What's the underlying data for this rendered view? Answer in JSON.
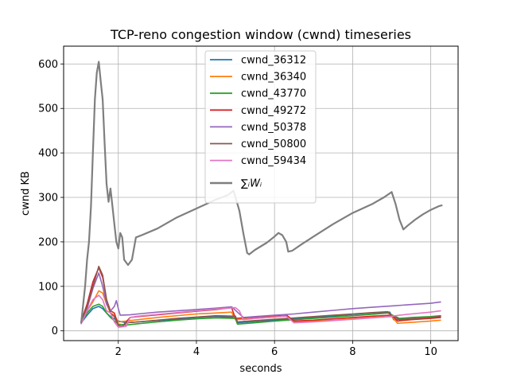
{
  "chart_data": {
    "type": "line",
    "title": "TCP-reno congestion window (cwnd) timeseries",
    "xlabel": "seconds",
    "ylabel": "cwnd KB",
    "xlim": [
      0.6,
      10.7
    ],
    "ylim": [
      -22,
      640
    ],
    "xticks": [
      2,
      4,
      6,
      8,
      10
    ],
    "yticks": [
      0,
      100,
      200,
      300,
      400,
      500,
      600
    ],
    "grid": true,
    "legend_position": "top-center",
    "series": [
      {
        "name": "cwnd_36312",
        "color": "#1f77b4",
        "points": [
          [
            1.05,
            18
          ],
          [
            1.2,
            35
          ],
          [
            1.35,
            50
          ],
          [
            1.5,
            55
          ],
          [
            1.6,
            50
          ],
          [
            1.7,
            40
          ],
          [
            1.8,
            32
          ],
          [
            2.0,
            22
          ],
          [
            2.2,
            18
          ],
          [
            2.5,
            20
          ],
          [
            3.0,
            23
          ],
          [
            3.5,
            26
          ],
          [
            4.0,
            30
          ],
          [
            4.5,
            32
          ],
          [
            5.0,
            30
          ],
          [
            5.05,
            18
          ],
          [
            5.5,
            21
          ],
          [
            6.0,
            24
          ],
          [
            6.5,
            27
          ],
          [
            7.0,
            30
          ],
          [
            7.5,
            33
          ],
          [
            8.0,
            37
          ],
          [
            8.5,
            40
          ],
          [
            8.95,
            42
          ],
          [
            9.05,
            25
          ],
          [
            9.5,
            27
          ],
          [
            10.0,
            29
          ],
          [
            10.25,
            30
          ]
        ]
      },
      {
        "name": "cwnd_36340",
        "color": "#ff7f0e",
        "points": [
          [
            1.05,
            20
          ],
          [
            1.2,
            45
          ],
          [
            1.35,
            65
          ],
          [
            1.5,
            90
          ],
          [
            1.6,
            85
          ],
          [
            1.7,
            60
          ],
          [
            1.8,
            40
          ],
          [
            1.9,
            35
          ],
          [
            2.0,
            20
          ],
          [
            2.2,
            22
          ],
          [
            2.5,
            25
          ],
          [
            3.0,
            30
          ],
          [
            3.5,
            34
          ],
          [
            4.0,
            38
          ],
          [
            4.5,
            40
          ],
          [
            4.9,
            42
          ],
          [
            5.0,
            25
          ],
          [
            5.5,
            28
          ],
          [
            6.0,
            31
          ],
          [
            6.3,
            33
          ],
          [
            6.5,
            20
          ],
          [
            7.0,
            22
          ],
          [
            7.5,
            24
          ],
          [
            8.0,
            27
          ],
          [
            8.5,
            30
          ],
          [
            9.0,
            32
          ],
          [
            9.15,
            17
          ],
          [
            9.5,
            19
          ],
          [
            10.0,
            22
          ],
          [
            10.25,
            24
          ]
        ]
      },
      {
        "name": "cwnd_43770",
        "color": "#2ca02c",
        "points": [
          [
            1.05,
            18
          ],
          [
            1.2,
            40
          ],
          [
            1.35,
            55
          ],
          [
            1.5,
            60
          ],
          [
            1.6,
            55
          ],
          [
            1.7,
            40
          ],
          [
            1.8,
            30
          ],
          [
            2.0,
            15
          ],
          [
            2.2,
            13
          ],
          [
            2.5,
            16
          ],
          [
            3.0,
            20
          ],
          [
            3.5,
            24
          ],
          [
            4.0,
            27
          ],
          [
            4.5,
            29
          ],
          [
            5.0,
            28
          ],
          [
            5.05,
            15
          ],
          [
            5.5,
            18
          ],
          [
            6.0,
            22
          ],
          [
            6.5,
            25
          ],
          [
            7.0,
            28
          ],
          [
            7.5,
            31
          ],
          [
            8.0,
            34
          ],
          [
            8.5,
            37
          ],
          [
            8.9,
            40
          ],
          [
            9.0,
            36
          ],
          [
            9.2,
            28
          ],
          [
            9.5,
            30
          ],
          [
            10.0,
            32
          ],
          [
            10.25,
            34
          ]
        ]
      },
      {
        "name": "cwnd_49272",
        "color": "#d62728",
        "points": [
          [
            1.05,
            22
          ],
          [
            1.2,
            60
          ],
          [
            1.35,
            110
          ],
          [
            1.5,
            142
          ],
          [
            1.6,
            120
          ],
          [
            1.7,
            70
          ],
          [
            1.8,
            45
          ],
          [
            1.9,
            40
          ],
          [
            2.0,
            12
          ],
          [
            2.1,
            10
          ],
          [
            2.3,
            30
          ],
          [
            2.5,
            32
          ],
          [
            3.0,
            36
          ],
          [
            3.5,
            40
          ],
          [
            4.0,
            44
          ],
          [
            4.5,
            48
          ],
          [
            4.9,
            52
          ],
          [
            5.0,
            28
          ],
          [
            5.5,
            31
          ],
          [
            6.0,
            34
          ],
          [
            6.3,
            36
          ],
          [
            6.5,
            22
          ],
          [
            7.0,
            24
          ],
          [
            7.5,
            27
          ],
          [
            8.0,
            30
          ],
          [
            8.5,
            33
          ],
          [
            9.0,
            35
          ],
          [
            9.15,
            22
          ],
          [
            9.5,
            25
          ],
          [
            10.0,
            28
          ],
          [
            10.25,
            30
          ]
        ]
      },
      {
        "name": "cwnd_50378",
        "color": "#9467bd",
        "points": [
          [
            1.05,
            20
          ],
          [
            1.2,
            50
          ],
          [
            1.35,
            95
          ],
          [
            1.5,
            130
          ],
          [
            1.6,
            100
          ],
          [
            1.7,
            60
          ],
          [
            1.8,
            45
          ],
          [
            1.9,
            55
          ],
          [
            1.95,
            68
          ],
          [
            2.0,
            50
          ],
          [
            2.05,
            35
          ],
          [
            2.3,
            36
          ],
          [
            2.5,
            38
          ],
          [
            3.0,
            42
          ],
          [
            3.5,
            45
          ],
          [
            4.0,
            48
          ],
          [
            4.5,
            51
          ],
          [
            4.9,
            54
          ],
          [
            5.2,
            30
          ],
          [
            5.5,
            32
          ],
          [
            6.0,
            35
          ],
          [
            6.5,
            38
          ],
          [
            7.0,
            42
          ],
          [
            7.5,
            46
          ],
          [
            8.0,
            50
          ],
          [
            8.5,
            53
          ],
          [
            9.0,
            56
          ],
          [
            9.5,
            59
          ],
          [
            10.0,
            62
          ],
          [
            10.25,
            65
          ]
        ]
      },
      {
        "name": "cwnd_50800",
        "color": "#8c564b",
        "points": [
          [
            1.05,
            20
          ],
          [
            1.2,
            55
          ],
          [
            1.35,
            100
          ],
          [
            1.5,
            145
          ],
          [
            1.6,
            125
          ],
          [
            1.7,
            70
          ],
          [
            1.8,
            40
          ],
          [
            1.9,
            32
          ],
          [
            2.0,
            12
          ],
          [
            2.1,
            10
          ],
          [
            2.2,
            18
          ],
          [
            2.5,
            20
          ],
          [
            3.0,
            24
          ],
          [
            3.5,
            28
          ],
          [
            4.0,
            31
          ],
          [
            4.5,
            34
          ],
          [
            5.0,
            33
          ],
          [
            5.05,
            20
          ],
          [
            5.5,
            23
          ],
          [
            6.0,
            26
          ],
          [
            6.5,
            29
          ],
          [
            7.0,
            32
          ],
          [
            7.5,
            35
          ],
          [
            8.0,
            38
          ],
          [
            8.5,
            41
          ],
          [
            8.9,
            43
          ],
          [
            9.0,
            35
          ],
          [
            9.2,
            25
          ],
          [
            9.5,
            27
          ],
          [
            10.0,
            30
          ],
          [
            10.25,
            33
          ]
        ]
      },
      {
        "name": "cwnd_59434",
        "color": "#e377c2",
        "points": [
          [
            1.05,
            16
          ],
          [
            1.2,
            45
          ],
          [
            1.35,
            70
          ],
          [
            1.5,
            80
          ],
          [
            1.6,
            70
          ],
          [
            1.7,
            45
          ],
          [
            1.8,
            40
          ],
          [
            1.9,
            20
          ],
          [
            2.0,
            8
          ],
          [
            2.2,
            10
          ],
          [
            2.3,
            30
          ],
          [
            2.5,
            33
          ],
          [
            3.0,
            37
          ],
          [
            3.5,
            41
          ],
          [
            4.0,
            45
          ],
          [
            4.5,
            49
          ],
          [
            5.0,
            52
          ],
          [
            5.1,
            45
          ],
          [
            5.2,
            25
          ],
          [
            5.5,
            28
          ],
          [
            6.0,
            31
          ],
          [
            6.3,
            33
          ],
          [
            6.5,
            18
          ],
          [
            7.0,
            20
          ],
          [
            7.5,
            23
          ],
          [
            8.0,
            26
          ],
          [
            8.5,
            29
          ],
          [
            8.8,
            31
          ],
          [
            9.0,
            33
          ],
          [
            9.2,
            35
          ],
          [
            9.5,
            38
          ],
          [
            10.0,
            42
          ],
          [
            10.25,
            45
          ]
        ]
      },
      {
        "name": "∑ᵢWᵢ",
        "color": "#7f7f7f",
        "points": [
          [
            1.05,
            18
          ],
          [
            1.15,
            100
          ],
          [
            1.2,
            160
          ],
          [
            1.25,
            200
          ],
          [
            1.3,
            280
          ],
          [
            1.35,
            400
          ],
          [
            1.4,
            520
          ],
          [
            1.45,
            580
          ],
          [
            1.5,
            605
          ],
          [
            1.55,
            560
          ],
          [
            1.6,
            520
          ],
          [
            1.65,
            420
          ],
          [
            1.7,
            330
          ],
          [
            1.75,
            290
          ],
          [
            1.8,
            320
          ],
          [
            1.85,
            280
          ],
          [
            1.9,
            240
          ],
          [
            1.95,
            200
          ],
          [
            2.0,
            185
          ],
          [
            2.05,
            220
          ],
          [
            2.1,
            210
          ],
          [
            2.15,
            160
          ],
          [
            2.25,
            148
          ],
          [
            2.35,
            160
          ],
          [
            2.45,
            210
          ],
          [
            2.6,
            215
          ],
          [
            3.0,
            230
          ],
          [
            3.5,
            255
          ],
          [
            4.0,
            275
          ],
          [
            4.5,
            295
          ],
          [
            4.8,
            305
          ],
          [
            4.95,
            315
          ],
          [
            5.0,
            300
          ],
          [
            5.1,
            270
          ],
          [
            5.2,
            220
          ],
          [
            5.3,
            175
          ],
          [
            5.35,
            172
          ],
          [
            5.5,
            182
          ],
          [
            5.8,
            198
          ],
          [
            6.0,
            212
          ],
          [
            6.1,
            220
          ],
          [
            6.2,
            215
          ],
          [
            6.3,
            200
          ],
          [
            6.35,
            178
          ],
          [
            6.45,
            180
          ],
          [
            6.7,
            195
          ],
          [
            7.0,
            212
          ],
          [
            7.5,
            240
          ],
          [
            8.0,
            265
          ],
          [
            8.5,
            285
          ],
          [
            8.8,
            300
          ],
          [
            9.0,
            312
          ],
          [
            9.1,
            285
          ],
          [
            9.2,
            250
          ],
          [
            9.3,
            228
          ],
          [
            9.4,
            236
          ],
          [
            9.6,
            250
          ],
          [
            9.8,
            262
          ],
          [
            10.0,
            272
          ],
          [
            10.2,
            280
          ],
          [
            10.28,
            282
          ]
        ]
      }
    ]
  }
}
